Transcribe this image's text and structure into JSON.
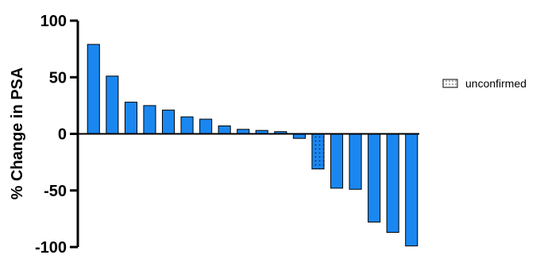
{
  "chart_data": {
    "type": "bar",
    "title": "",
    "xlabel": "",
    "ylabel": "% Change in PSA",
    "ylim": [
      -100,
      100
    ],
    "yticks": [
      100,
      50,
      0,
      -50,
      -100
    ],
    "grid": false,
    "bar_color": "#1a87f0",
    "legend": [
      {
        "label": "unconfirmed",
        "pattern": "dotted"
      }
    ],
    "values": [
      79,
      51,
      28,
      25,
      21,
      15,
      13,
      7,
      4,
      3,
      2,
      -4,
      -31,
      -48,
      -49,
      -78,
      -87,
      -99
    ],
    "unconfirmed": [
      false,
      false,
      false,
      false,
      false,
      false,
      false,
      false,
      false,
      false,
      false,
      false,
      true,
      false,
      false,
      false,
      false,
      false
    ]
  }
}
